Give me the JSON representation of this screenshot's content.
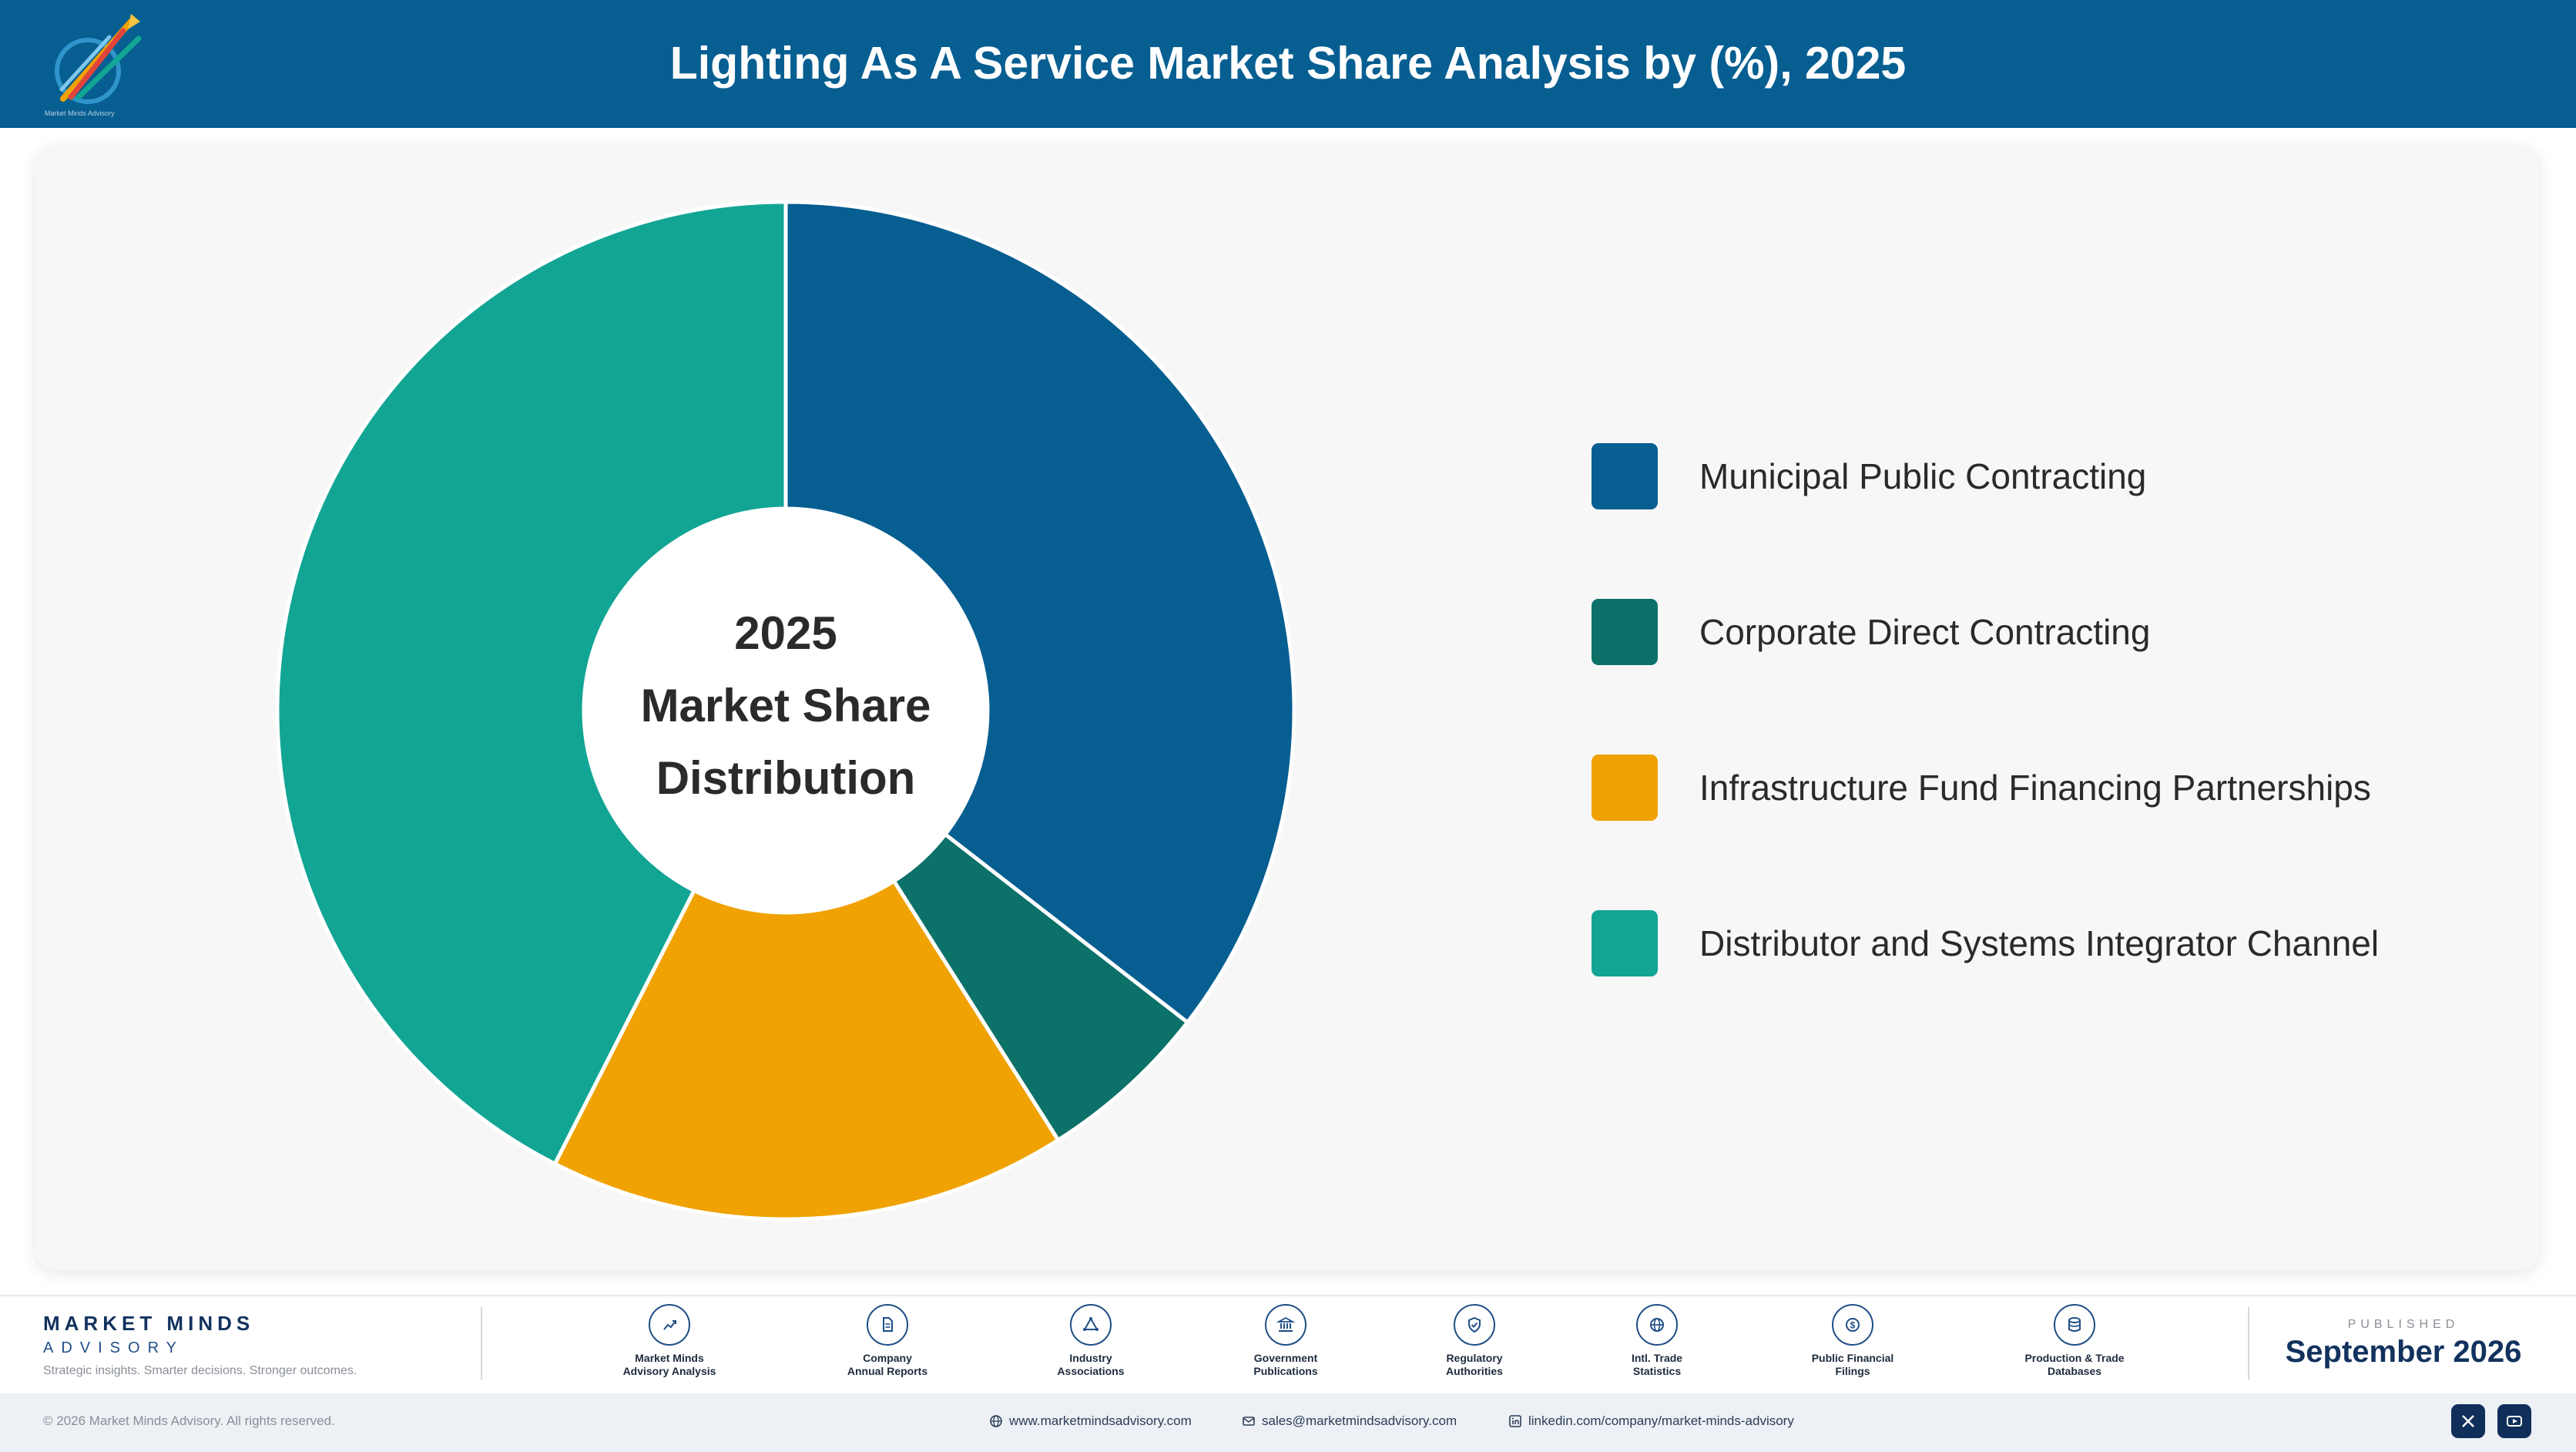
{
  "header": {
    "title": "Lighting As A Service Market Share Analysis by (%), 2025",
    "logo_text": "Market Minds Advisory"
  },
  "colors": {
    "header_bg": "#075e91",
    "municipal": "#075e91",
    "corporate": "#0c7169",
    "infrastructure": "#f0a202",
    "distributor": "#12a594"
  },
  "chart_data": {
    "type": "pie",
    "variant": "donut",
    "center_text": [
      "2025",
      "Market Share",
      "Distribution"
    ],
    "legend_position": "right",
    "slices": [
      {
        "label": "Municipal Public Contracting",
        "value": 35.5,
        "color": "#075e91"
      },
      {
        "label": "Corporate Direct Contracting",
        "value": 5.5,
        "color": "#0c7169"
      },
      {
        "label": "Infrastructure Fund Financing Partnerships",
        "value": 16.5,
        "color": "#f0a202"
      },
      {
        "label": "Distributor and Systems Integrator Channel",
        "value": 42.5,
        "color": "#12a594"
      }
    ]
  },
  "footer": {
    "brand_name": "MARKET MINDS",
    "brand_sub": "ADVISORY",
    "brand_tagline": "Strategic insights. Smarter decisions. Stronger outcomes.",
    "sources": [
      {
        "icon": "trend-line-icon",
        "label": "Market Minds\nAdvisory Analysis"
      },
      {
        "icon": "document-icon",
        "label": "Company\nAnnual Reports"
      },
      {
        "icon": "network-icon",
        "label": "Industry\nAssociations"
      },
      {
        "icon": "government-building-icon",
        "label": "Government\nPublications"
      },
      {
        "icon": "shield-check-icon",
        "label": "Regulatory\nAuthorities"
      },
      {
        "icon": "globe-icon",
        "label": "Intl. Trade\nStatistics"
      },
      {
        "icon": "dollar-coin-icon",
        "label": "Public Financial\nFilings"
      },
      {
        "icon": "database-icon",
        "label": "Production & Trade\nDatabases"
      }
    ],
    "published_label": "PUBLISHED",
    "published_date": "September 2026",
    "copyright": "© 2026 Market Minds Advisory. All rights reserved.",
    "website": "www.marketmindsadvisory.com",
    "email": "sales@marketmindsadvisory.com",
    "linkedin": "linkedin.com/company/market-minds-advisory"
  }
}
